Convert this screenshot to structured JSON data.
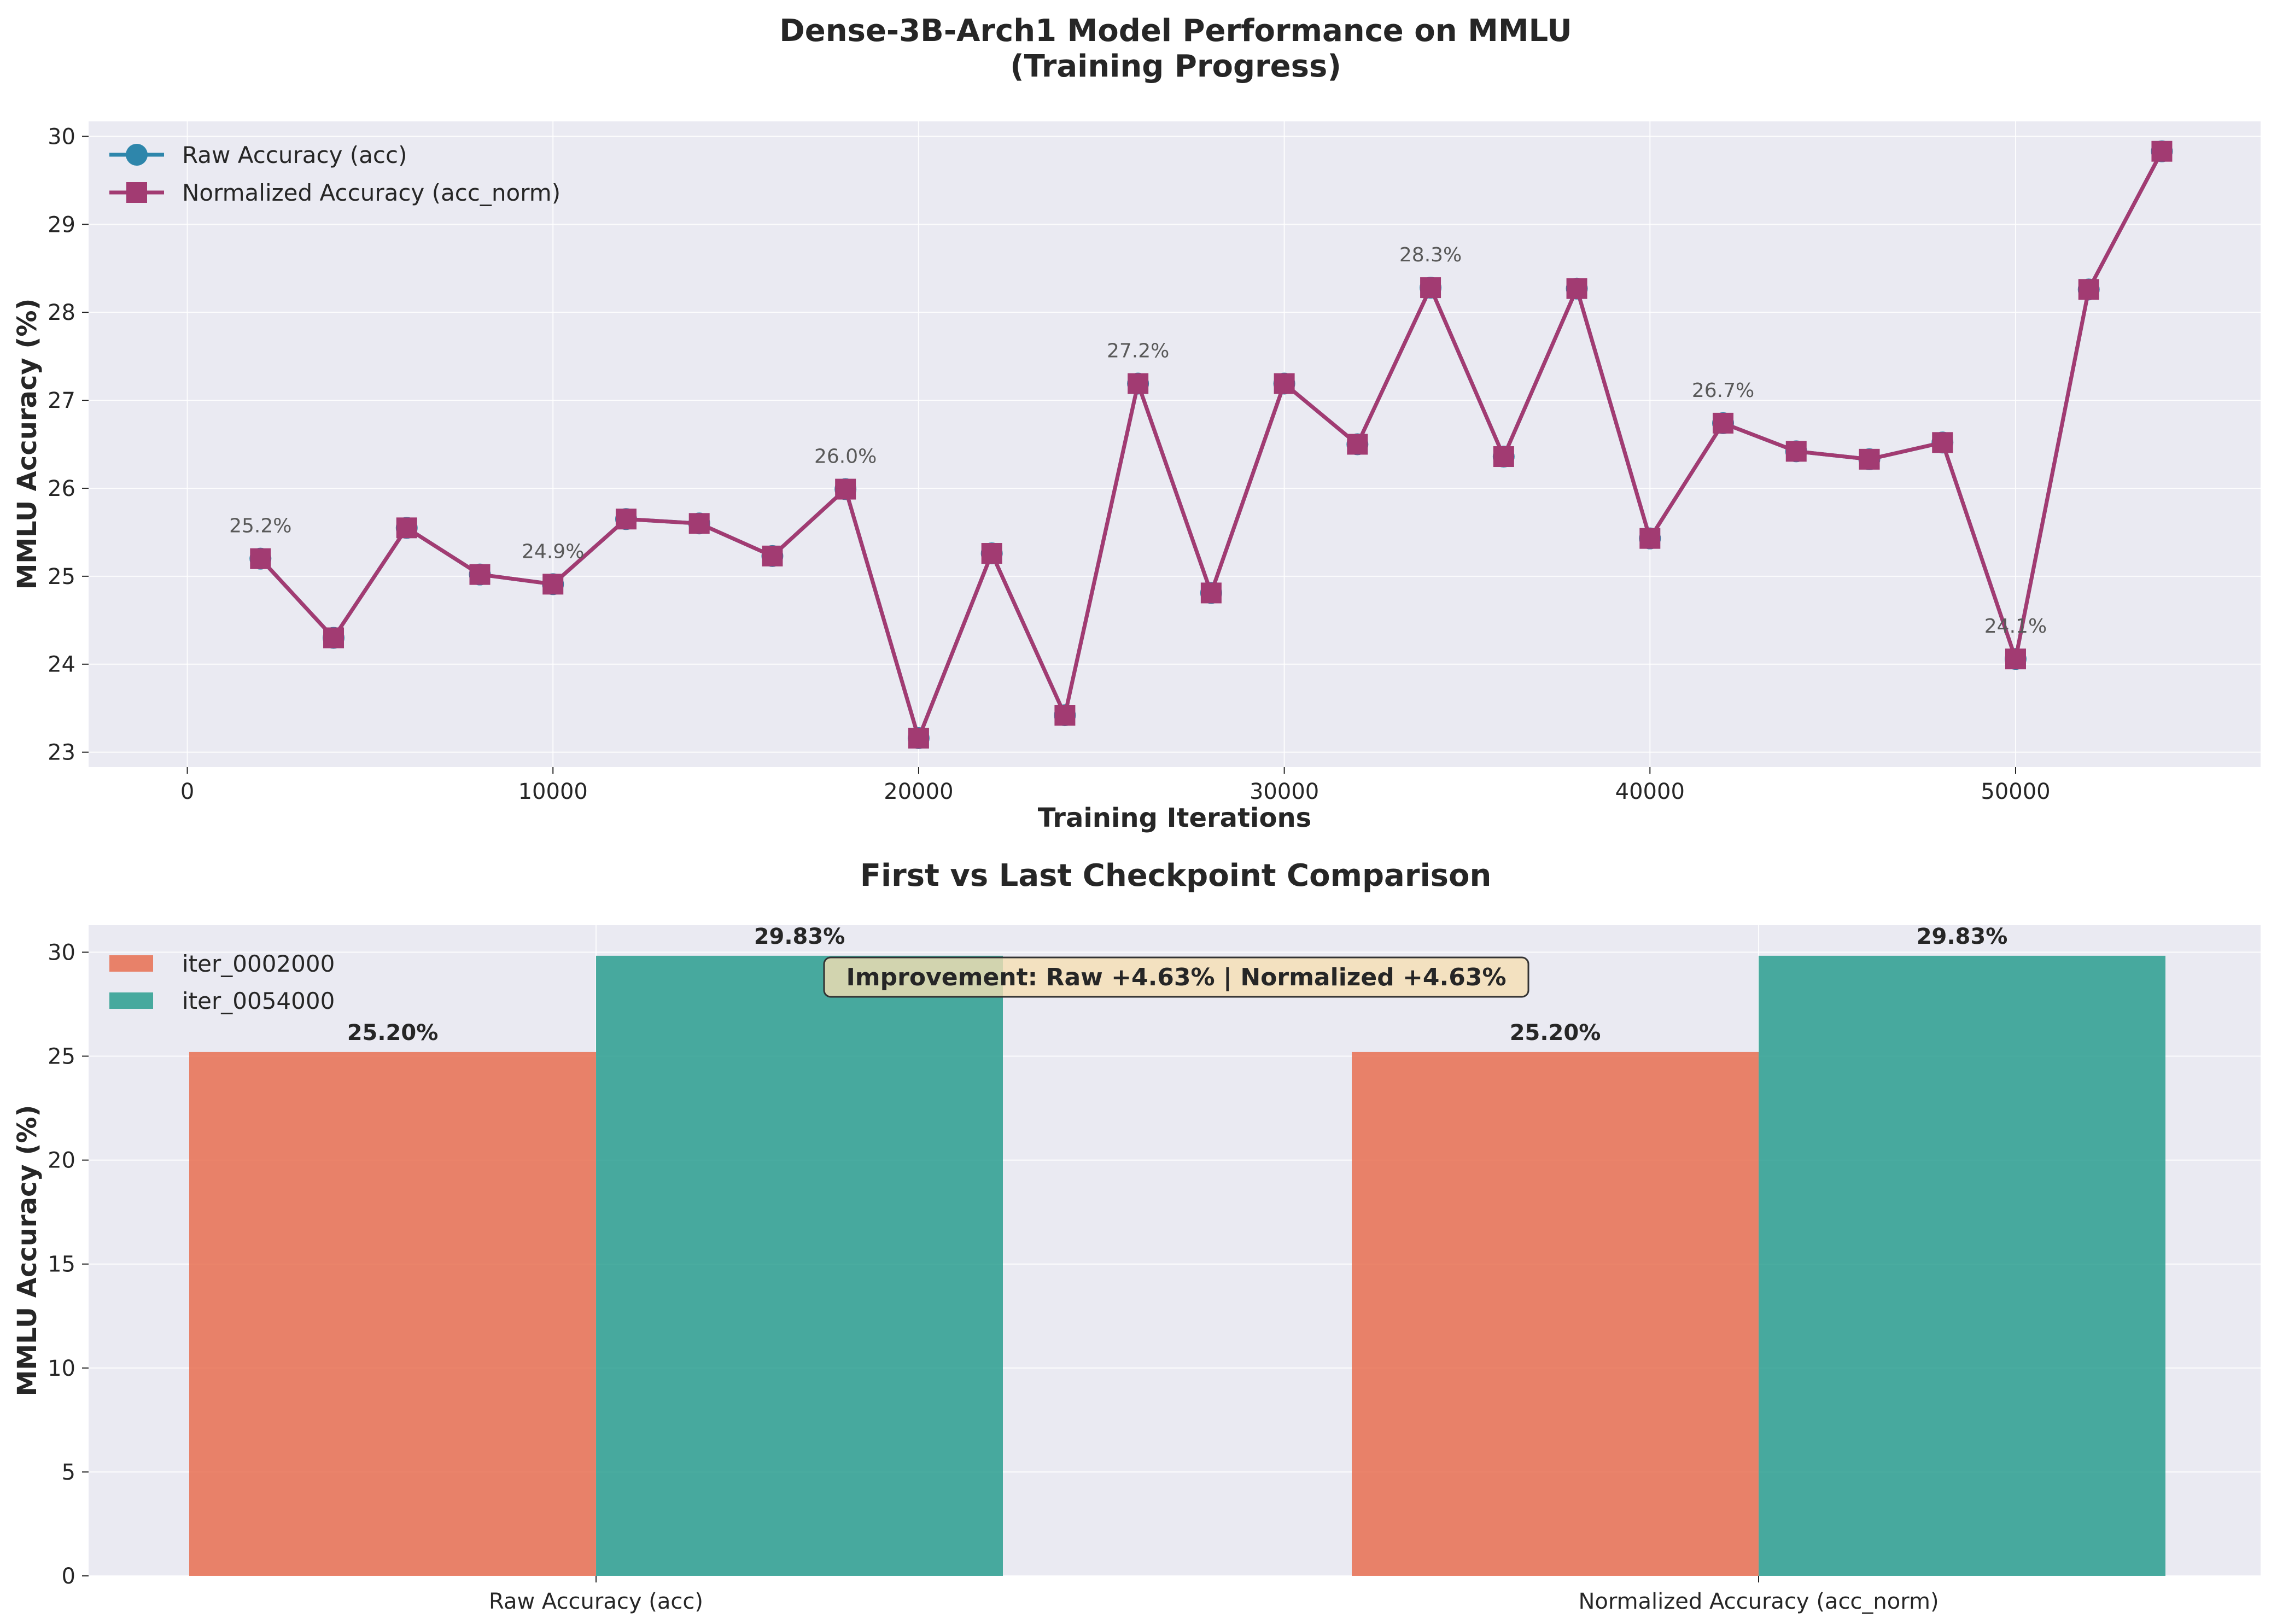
{
  "chart_data": [
    {
      "type": "line",
      "title": "Dense-3B-Arch1 Model Performance on MMLU",
      "subtitle": "(Training Progress)",
      "xlabel": "Training Iterations",
      "ylabel": "MMLU Accuracy (%)",
      "xlim": [
        -2700,
        56700
      ],
      "ylim": [
        22.83,
        30.17
      ],
      "xticks": [
        0,
        10000,
        20000,
        30000,
        40000,
        50000
      ],
      "yticks": [
        23,
        24,
        25,
        26,
        27,
        28,
        29,
        30
      ],
      "grid": true,
      "legend_position": "upper left",
      "x": [
        2000,
        4000,
        6000,
        8000,
        10000,
        12000,
        14000,
        16000,
        18000,
        20000,
        22000,
        24000,
        26000,
        28000,
        30000,
        32000,
        34000,
        36000,
        38000,
        40000,
        42000,
        44000,
        46000,
        48000,
        50000,
        52000,
        54000
      ],
      "series": [
        {
          "name": "Raw Accuracy (acc)",
          "marker": "circle",
          "color": "#2E86AB",
          "values": [
            25.2,
            24.3,
            25.55,
            25.02,
            24.91,
            25.65,
            25.6,
            25.23,
            25.99,
            23.16,
            25.26,
            23.42,
            27.19,
            24.81,
            27.19,
            26.5,
            28.28,
            26.36,
            28.27,
            25.43,
            26.74,
            26.42,
            26.33,
            26.52,
            24.06,
            28.26,
            29.83
          ]
        },
        {
          "name": "Normalized Accuracy (acc_norm)",
          "marker": "square",
          "color": "#A23B72",
          "values": [
            25.2,
            24.3,
            25.55,
            25.02,
            24.91,
            25.65,
            25.6,
            25.23,
            25.99,
            23.16,
            25.26,
            23.42,
            27.19,
            24.81,
            27.19,
            26.5,
            28.28,
            26.36,
            28.27,
            25.43,
            26.74,
            26.42,
            26.33,
            26.52,
            24.06,
            28.26,
            29.83
          ]
        }
      ],
      "annotations": [
        {
          "x": 2000,
          "y": 25.2,
          "text": "25.2%"
        },
        {
          "x": 10000,
          "y": 24.91,
          "text": "24.9%"
        },
        {
          "x": 18000,
          "y": 25.99,
          "text": "26.0%"
        },
        {
          "x": 26000,
          "y": 27.19,
          "text": "27.2%"
        },
        {
          "x": 34000,
          "y": 28.28,
          "text": "28.3%"
        },
        {
          "x": 42000,
          "y": 26.74,
          "text": "26.7%"
        },
        {
          "x": 50000,
          "y": 24.06,
          "text": "24.1%"
        }
      ]
    },
    {
      "type": "bar",
      "title": "First vs Last Checkpoint Comparison",
      "xlabel": "",
      "ylabel": "MMLU Accuracy (%)",
      "ylim": [
        0,
        31.3
      ],
      "yticks": [
        0,
        5,
        10,
        15,
        20,
        25,
        30
      ],
      "grid": true,
      "legend_position": "upper left",
      "categories": [
        "Raw Accuracy (acc)",
        "Normalized Accuracy (acc_norm)"
      ],
      "series": [
        {
          "name": "iter_0002000",
          "color": "#E76F51",
          "values": [
            25.2,
            25.2
          ],
          "labels": [
            "25.20%",
            "25.20%"
          ]
        },
        {
          "name": "iter_0054000",
          "color": "#2A9D8F",
          "values": [
            29.83,
            29.83
          ],
          "labels": [
            "29.83%",
            "29.83%"
          ]
        }
      ],
      "annotation_box": "Improvement: Raw +4.63% | Normalized +4.63%"
    }
  ]
}
